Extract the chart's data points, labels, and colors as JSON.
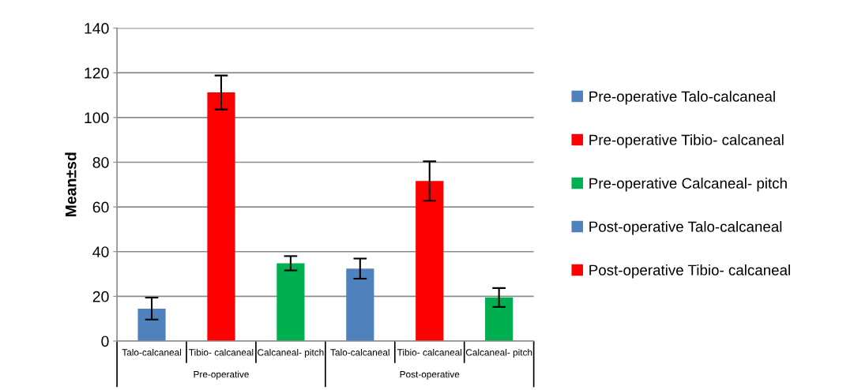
{
  "chart_data": {
    "type": "bar",
    "ylabel": "Mean±sd",
    "categories": [
      "Talo-calcaneal",
      "Tibio- calcaneal",
      "Calcaneal- pitch",
      "Talo-calcaneal",
      "Tibio- calcaneal",
      "Calcaneal- pitch"
    ],
    "series": [
      {
        "name": "Pre-operative Talo-calcaneal",
        "color": "#4f81bd",
        "values": [
          14.5,
          null,
          null,
          null,
          null,
          null
        ],
        "errors": [
          4.9,
          null,
          null,
          null,
          null,
          null
        ]
      },
      {
        "name": "Pre-operative Tibio- calcaneal",
        "color": "#ff0000",
        "values": [
          null,
          111.2,
          null,
          null,
          null,
          null
        ],
        "errors": [
          null,
          7.6,
          null,
          null,
          null,
          null
        ]
      },
      {
        "name": "Pre-operative Calcaneal- pitch",
        "color": "#00b050",
        "values": [
          null,
          null,
          34.8,
          null,
          null,
          null
        ],
        "errors": [
          null,
          null,
          3.2,
          null,
          null,
          null
        ]
      },
      {
        "name": "Post-operative Talo-calcaneal",
        "color": "#4f81bd",
        "values": [
          null,
          null,
          null,
          32.4,
          null,
          null
        ],
        "errors": [
          null,
          null,
          null,
          4.5,
          null,
          null
        ]
      },
      {
        "name": "Post-operative Tibio- calcaneal",
        "color": "#ff0000",
        "values": [
          null,
          null,
          null,
          null,
          71.6,
          null
        ],
        "errors": [
          null,
          null,
          null,
          null,
          8.8,
          null
        ]
      },
      {
        "color": "#00b050",
        "values": [
          null,
          null,
          null,
          null,
          null,
          19.5
        ],
        "errors": [
          null,
          null,
          null,
          null,
          null,
          4.2
        ]
      }
    ],
    "annotations": [
      "Pre-operative",
      "Post-operative"
    ],
    "ylim": [
      0,
      140
    ],
    "yticks": [
      0,
      20,
      40,
      60,
      80,
      100,
      120,
      140
    ],
    "grid": "y",
    "legend": "right"
  }
}
